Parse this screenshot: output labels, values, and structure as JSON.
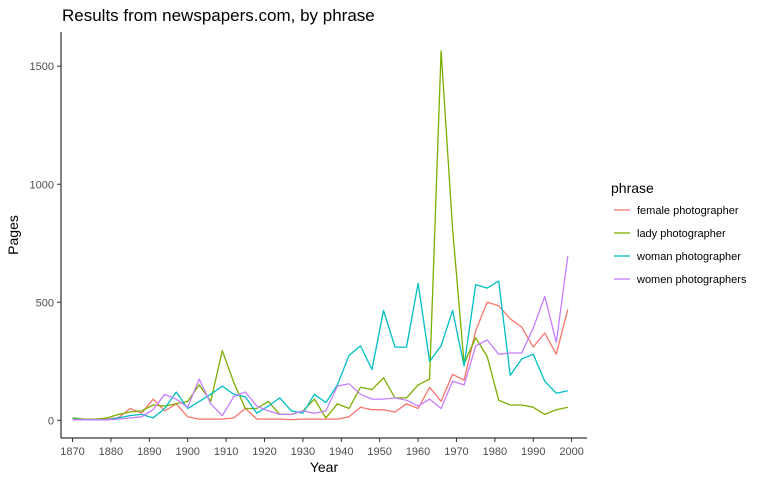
{
  "chart_data": {
    "type": "line",
    "title": "Results from newspapers.com, by phrase",
    "xlabel": "Year",
    "ylabel": "Pages",
    "xlim": [
      1867,
      2004
    ],
    "ylim": [
      -75,
      1645
    ],
    "x_ticks": [
      1870,
      1880,
      1890,
      1900,
      1910,
      1920,
      1930,
      1940,
      1950,
      1960,
      1970,
      1980,
      1990,
      2000
    ],
    "y_ticks": [
      0,
      500,
      1000,
      1500
    ],
    "grid": false,
    "legend": {
      "title": "phrase",
      "position": "right"
    },
    "x": [
      1870,
      1873,
      1876,
      1879,
      1882,
      1885,
      1888,
      1891,
      1894,
      1897,
      1900,
      1903,
      1906,
      1909,
      1912,
      1915,
      1918,
      1921,
      1924,
      1927,
      1930,
      1933,
      1936,
      1939,
      1942,
      1945,
      1948,
      1951,
      1954,
      1957,
      1960,
      1963,
      1966,
      1969,
      1972,
      1975,
      1978,
      1981,
      1984,
      1987,
      1990,
      1993,
      1996,
      1999
    ],
    "series": [
      {
        "name": "female photographer",
        "color": "#F8766D",
        "values": [
          5,
          3,
          3,
          5,
          12,
          50,
          30,
          90,
          40,
          70,
          15,
          5,
          5,
          5,
          10,
          50,
          5,
          5,
          5,
          3,
          5,
          5,
          5,
          5,
          15,
          55,
          45,
          45,
          35,
          70,
          50,
          140,
          80,
          195,
          170,
          380,
          500,
          485,
          430,
          395,
          310,
          370,
          280,
          470
        ]
      },
      {
        "name": "lady photographer",
        "color": "#7CAE00",
        "values": [
          10,
          5,
          5,
          10,
          25,
          35,
          40,
          65,
          60,
          70,
          80,
          150,
          80,
          295,
          160,
          50,
          50,
          80,
          25,
          25,
          40,
          90,
          10,
          70,
          50,
          140,
          130,
          180,
          95,
          95,
          150,
          175,
          1565,
          810,
          240,
          350,
          270,
          85,
          65,
          65,
          55,
          25,
          45,
          55
        ]
      },
      {
        "name": "woman photographer",
        "color": "#00BFC4",
        "values": [
          5,
          3,
          3,
          3,
          10,
          20,
          25,
          10,
          50,
          120,
          50,
          80,
          110,
          145,
          110,
          100,
          30,
          60,
          95,
          40,
          30,
          110,
          75,
          150,
          275,
          315,
          215,
          465,
          310,
          310,
          580,
          250,
          315,
          465,
          230,
          575,
          560,
          590,
          190,
          260,
          280,
          165,
          115,
          125
        ]
      },
      {
        "name": "women photographers",
        "color": "#C77CFF",
        "values": [
          2,
          2,
          2,
          2,
          5,
          10,
          15,
          45,
          110,
          90,
          55,
          175,
          70,
          20,
          100,
          120,
          60,
          40,
          25,
          25,
          40,
          30,
          40,
          145,
          155,
          110,
          90,
          90,
          95,
          85,
          60,
          90,
          50,
          165,
          150,
          315,
          340,
          280,
          285,
          285,
          390,
          525,
          330,
          695
        ]
      }
    ]
  }
}
